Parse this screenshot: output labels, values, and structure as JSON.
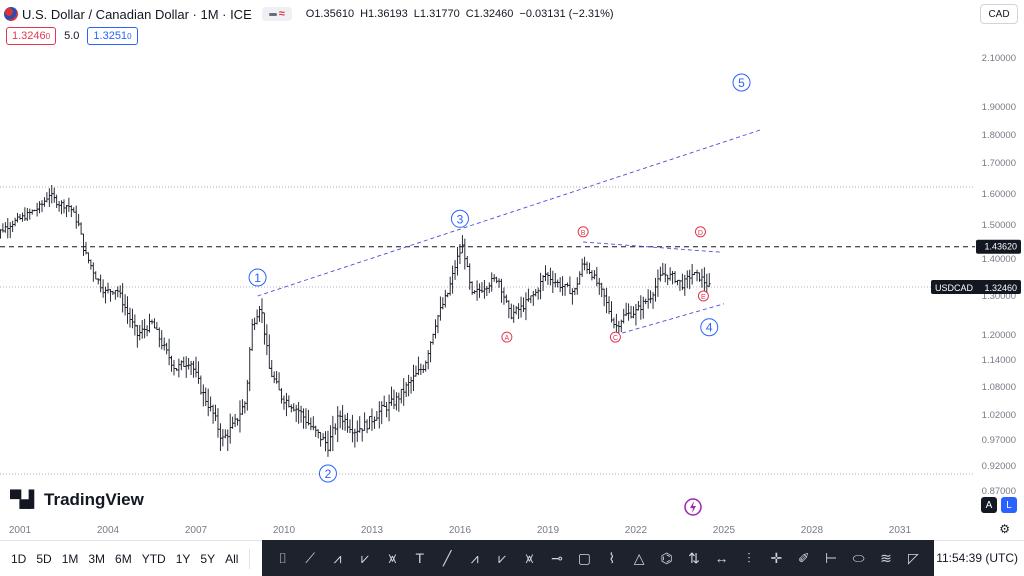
{
  "header": {
    "title": "U.S. Dollar / Canadian Dollar · 1M · ICE",
    "ohlc": [
      {
        "label": "O",
        "value": "1.35610"
      },
      {
        "label": "H",
        "value": "1.36193"
      },
      {
        "label": "L",
        "value": "1.31770"
      },
      {
        "label": "C",
        "value": "1.32460"
      }
    ],
    "change": "−0.03131 (−2.31%)",
    "sell_price": "1.3246",
    "sell_sup": "0",
    "spread": "5.0",
    "buy_price": "1.3251",
    "buy_sup": "0",
    "currency_button": "CAD"
  },
  "colors": {
    "up": "#131722",
    "wave_blue": "#2962ff",
    "wave_red": "#e0394f",
    "trendline": "#4a4fd6",
    "brand_dark": "#131722"
  },
  "brand": {
    "name": "TradingView"
  },
  "badges": {
    "a": "A",
    "l": "L"
  },
  "chart_data": {
    "type": "candlestick",
    "symbol": "USDCAD",
    "interval": "1M",
    "y_ticks": [
      "2.10000",
      "1.90000",
      "1.80000",
      "1.70000",
      "1.60000",
      "1.50000",
      "1.40000",
      "1.30000",
      "1.20000",
      "1.14000",
      "1.08000",
      "1.02000",
      "0.97000",
      "0.92000",
      "0.87000"
    ],
    "x_ticks": [
      "2001",
      "2004",
      "2007",
      "2010",
      "2013",
      "2016",
      "2019",
      "2022",
      "2025",
      "2028",
      "2031"
    ],
    "last_price_label": "USDCAD",
    "last_price": "1.32460",
    "hline_price": "1.43620",
    "price_path": [
      [
        2000.0,
        1.46
      ],
      [
        2000.6,
        1.5
      ],
      [
        2001.2,
        1.53
      ],
      [
        2001.7,
        1.56
      ],
      [
        2002.0,
        1.6
      ],
      [
        2002.3,
        1.57
      ],
      [
        2002.7,
        1.56
      ],
      [
        2003.0,
        1.5
      ],
      [
        2003.2,
        1.42
      ],
      [
        2003.6,
        1.35
      ],
      [
        2003.9,
        1.31
      ],
      [
        2004.3,
        1.32
      ],
      [
        2004.7,
        1.25
      ],
      [
        2005.0,
        1.2
      ],
      [
        2005.5,
        1.23
      ],
      [
        2005.9,
        1.17
      ],
      [
        2006.3,
        1.12
      ],
      [
        2006.8,
        1.14
      ],
      [
        2007.2,
        1.07
      ],
      [
        2007.6,
        1.02
      ],
      [
        2007.9,
        0.97
      ],
      [
        2008.3,
        1.0
      ],
      [
        2008.7,
        1.05
      ],
      [
        2008.9,
        1.22
      ],
      [
        2009.2,
        1.28
      ],
      [
        2009.5,
        1.12
      ],
      [
        2009.9,
        1.06
      ],
      [
        2010.5,
        1.03
      ],
      [
        2011.0,
        0.99
      ],
      [
        2011.5,
        0.96
      ],
      [
        2011.9,
        1.02
      ],
      [
        2012.4,
        0.99
      ],
      [
        2012.8,
        1.0
      ],
      [
        2013.3,
        1.03
      ],
      [
        2013.8,
        1.05
      ],
      [
        2014.3,
        1.09
      ],
      [
        2014.8,
        1.13
      ],
      [
        2015.2,
        1.24
      ],
      [
        2015.6,
        1.31
      ],
      [
        2015.9,
        1.4
      ],
      [
        2016.1,
        1.44
      ],
      [
        2016.4,
        1.3
      ],
      [
        2016.9,
        1.33
      ],
      [
        2017.3,
        1.35
      ],
      [
        2017.7,
        1.25
      ],
      [
        2018.1,
        1.27
      ],
      [
        2018.6,
        1.31
      ],
      [
        2018.9,
        1.36
      ],
      [
        2019.4,
        1.33
      ],
      [
        2019.9,
        1.31
      ],
      [
        2020.2,
        1.39
      ],
      [
        2020.5,
        1.36
      ],
      [
        2020.9,
        1.3
      ],
      [
        2021.3,
        1.22
      ],
      [
        2021.6,
        1.25
      ],
      [
        2022.0,
        1.26
      ],
      [
        2022.5,
        1.3
      ],
      [
        2022.9,
        1.36
      ],
      [
        2023.3,
        1.35
      ],
      [
        2023.6,
        1.33
      ],
      [
        2023.9,
        1.36
      ],
      [
        2024.2,
        1.35
      ],
      [
        2024.5,
        1.3246
      ]
    ],
    "trendlines": [
      {
        "from": [
          2009.1,
          1.3
        ],
        "to": [
          2026.3,
          1.82
        ],
        "style": "dashed"
      },
      {
        "from": [
          2021.3,
          1.2
        ],
        "to": [
          2025.0,
          1.28
        ],
        "style": "dashed"
      },
      {
        "from": [
          2020.2,
          1.45
        ],
        "to": [
          2024.9,
          1.42
        ],
        "style": "dashed"
      }
    ],
    "wave_labels": [
      {
        "label": "1",
        "x": 2009.1,
        "y": 1.35,
        "color": "blue"
      },
      {
        "label": "2",
        "x": 2011.5,
        "y": 0.905,
        "color": "blue"
      },
      {
        "label": "3",
        "x": 2016.0,
        "y": 1.52,
        "color": "blue"
      },
      {
        "label": "4",
        "x": 2024.5,
        "y": 1.22,
        "color": "blue"
      },
      {
        "label": "5",
        "x": 2025.6,
        "y": 2.0,
        "color": "blue"
      },
      {
        "label": "A",
        "x": 2017.6,
        "y": 1.195,
        "color": "red"
      },
      {
        "label": "B",
        "x": 2020.2,
        "y": 1.48,
        "color": "red"
      },
      {
        "label": "C",
        "x": 2021.3,
        "y": 1.195,
        "color": "red"
      },
      {
        "label": "D",
        "x": 2024.2,
        "y": 1.48,
        "color": "red"
      },
      {
        "label": "E",
        "x": 2024.3,
        "y": 1.3,
        "color": "red"
      }
    ]
  },
  "bottombar": {
    "timeframes": [
      "1D",
      "5D",
      "1M",
      "3M",
      "6M",
      "YTD",
      "1Y",
      "5Y",
      "All"
    ],
    "clock": "11:54:39 (UTC)"
  },
  "drawing_tools": [
    "calendar-icon",
    "trend-icon",
    "elliott-15-icon",
    "elliott-ae-icon",
    "abcd-icon",
    "text-icon",
    "line-icon",
    "ac-icon",
    "wy-icon",
    "wz-icon",
    "horizontal-icon",
    "rect-icon",
    "path-icon",
    "triangle-icon",
    "pattern-icon",
    "long-short-icon",
    "range-icon",
    "vline-icon",
    "cross-icon",
    "brush-icon",
    "price-range-icon",
    "ellipse-icon",
    "fib-icon",
    "ruler-icon"
  ]
}
